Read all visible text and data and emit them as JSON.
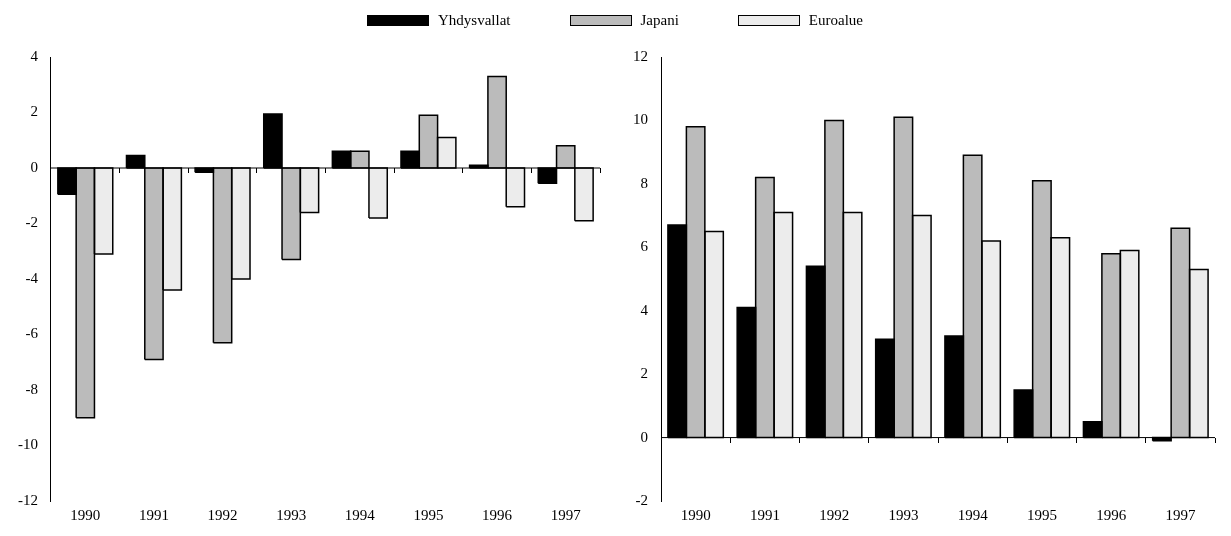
{
  "chart_data": [
    {
      "type": "bar",
      "categories": [
        "1990",
        "1991",
        "1992",
        "1993",
        "1994",
        "1995",
        "1996",
        "1997"
      ],
      "series": [
        {
          "name": "Yhdysvallat",
          "color": "#000000",
          "values": [
            -0.95,
            0.45,
            -0.15,
            1.95,
            0.6,
            0.6,
            0.1,
            -0.55
          ]
        },
        {
          "name": "Japani",
          "color": "#bbbbbb",
          "values": [
            -9.0,
            -6.9,
            -6.3,
            -3.3,
            0.6,
            1.9,
            3.3,
            0.8
          ]
        },
        {
          "name": "Euroalue",
          "color": "#ececec",
          "values": [
            -3.1,
            -4.4,
            -4.0,
            -1.6,
            -1.8,
            1.1,
            -1.4,
            -1.9
          ]
        }
      ],
      "ylim": [
        -12,
        4
      ],
      "yticks": [
        -12,
        -10,
        -8,
        -6,
        -4,
        -2,
        0,
        2,
        4
      ],
      "grid": false,
      "legend": "top",
      "ref_lines": [
        {
          "axis": "y",
          "value": 0,
          "color": "#000000"
        }
      ]
    },
    {
      "type": "bar",
      "categories": [
        "1990",
        "1991",
        "1992",
        "1993",
        "1994",
        "1995",
        "1996",
        "1997"
      ],
      "series": [
        {
          "color": "#000000",
          "values": [
            6.7,
            4.1,
            5.4,
            3.1,
            3.2,
            1.5,
            0.5,
            -0.1
          ]
        },
        {
          "color": "#bbbbbb",
          "values": [
            9.8,
            8.2,
            10.0,
            10.1,
            8.9,
            8.1,
            5.8,
            6.6
          ]
        },
        {
          "color": "#ececec",
          "values": [
            6.5,
            7.1,
            7.1,
            7.0,
            6.2,
            6.3,
            5.9,
            5.3
          ]
        }
      ],
      "ylim": [
        -2,
        12
      ],
      "yticks": [
        -2,
        0,
        2,
        4,
        6,
        8,
        10,
        12
      ],
      "grid": false,
      "ref_lines": [
        {
          "axis": "y",
          "value": 0,
          "color": "#000000"
        }
      ]
    }
  ]
}
